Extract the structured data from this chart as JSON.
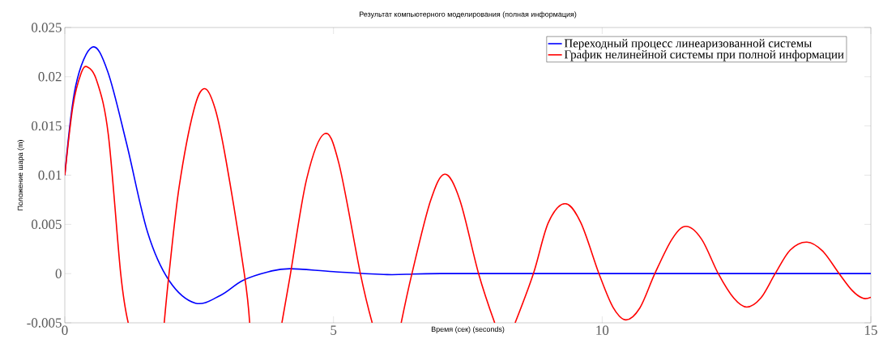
{
  "chart_data": {
    "type": "line",
    "title": "Результат компьютерного моделирования (полная информация)",
    "xlabel": "Время (сек) (seconds)",
    "ylabel": "Положение шара (m)",
    "xlim": [
      0,
      15
    ],
    "ylim": [
      -0.005,
      0.025
    ],
    "xticks": [
      0,
      5,
      10,
      15
    ],
    "yticks": [
      -0.005,
      0,
      0.005,
      0.01,
      0.015,
      0.02,
      0.025
    ],
    "legend": "top right",
    "marker": "none",
    "line_style": "solid",
    "series": [
      {
        "name": "Переходный процесс линеаризованной системы",
        "color": "#0000ff",
        "x": [
          0,
          0.2,
          0.51,
          0.8,
          1.15,
          1.54,
          1.94,
          2.43,
          2.9,
          3.31,
          3.8,
          4.19,
          5,
          6,
          7,
          10,
          15
        ],
        "values": [
          0.01,
          0.019,
          0.023,
          0.0205,
          0.0132,
          0.0042,
          -0.0007,
          -0.003,
          -0.0022,
          -0.0007,
          0.0002,
          0.0005,
          0.0002,
          -0.0001,
          0,
          0,
          0
        ]
      },
      {
        "name": "График нелинейной системы при полной информации",
        "color": "#ff0000",
        "x": [
          0,
          0.15,
          0.3,
          0.42,
          0.6,
          0.81,
          1.04,
          1.18,
          1.5,
          1.85,
          1.94,
          2.13,
          2.4,
          2.6,
          2.8,
          3.0,
          3.34,
          3.44,
          3.75,
          4.04,
          4.2,
          4.5,
          4.83,
          5.1,
          5.5,
          5.72,
          6.0,
          6.26,
          6.46,
          6.8,
          7.07,
          7.35,
          7.7,
          8.0,
          8.2,
          8.38,
          8.72,
          9.0,
          9.31,
          9.6,
          9.94,
          10.2,
          10.44,
          10.7,
          10.98,
          11.3,
          11.56,
          11.85,
          12.16,
          12.45,
          12.69,
          12.95,
          13.22,
          13.5,
          13.81,
          14.1,
          14.41,
          14.65,
          14.85,
          15
        ],
        "values": [
          0.01,
          0.017,
          0.0203,
          0.021,
          0.0195,
          0.0141,
          0,
          -0.005,
          null,
          -0.005,
          0,
          0.0089,
          0.0166,
          0.0188,
          0.0167,
          0.0115,
          0,
          -0.005,
          null,
          -0.005,
          0,
          0.0096,
          0.0142,
          0.0112,
          0,
          -0.005,
          null,
          -0.005,
          0,
          0.0073,
          0.0101,
          0.0075,
          0,
          -0.005,
          null,
          -0.005,
          0,
          0.0052,
          0.0071,
          0.0052,
          0,
          -0.0034,
          -0.0047,
          -0.0035,
          0,
          0.0035,
          0.0048,
          0.0035,
          0,
          -0.0025,
          -0.0034,
          -0.0025,
          0,
          0.0024,
          0.0032,
          0.0023,
          0,
          -0.0017,
          -0.0025,
          -0.0024
        ]
      }
    ]
  }
}
